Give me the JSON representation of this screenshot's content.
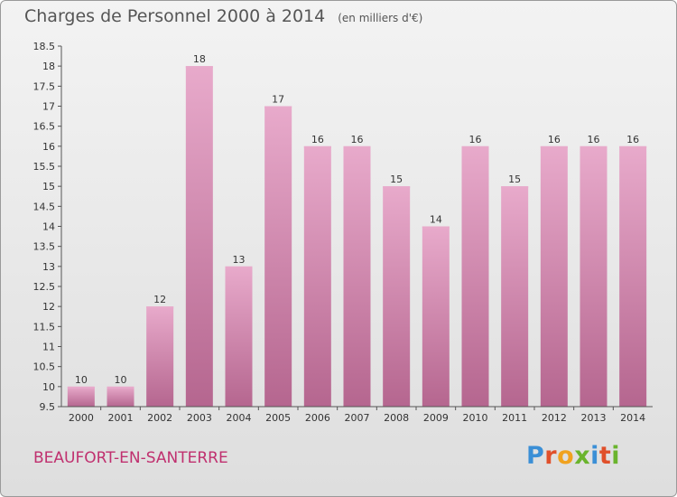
{
  "header": {
    "title": "Charges de Personnel 2000 à 2014",
    "subtitle": "(en milliers d'€)"
  },
  "footer": {
    "commune": "BEAUFORT-EN-SANTERRE",
    "logo": "Proxiti"
  },
  "colors": {
    "bar_top": "#e8aacb",
    "bar_bottom": "#b5668f",
    "commune_text": "#c0306f"
  },
  "chart_data": {
    "type": "bar",
    "title": "Charges de Personnel 2000 à 2014",
    "subtitle": "(en milliers d'€)",
    "xlabel": "",
    "ylabel": "",
    "categories": [
      "2000",
      "2001",
      "2002",
      "2003",
      "2004",
      "2005",
      "2006",
      "2007",
      "2008",
      "2009",
      "2010",
      "2011",
      "2012",
      "2013",
      "2014"
    ],
    "values": [
      10,
      10,
      12,
      18,
      13,
      17,
      16,
      16,
      15,
      14,
      16,
      15,
      16,
      16,
      16
    ],
    "data_labels": [
      "10",
      "10",
      "12",
      "18",
      "13",
      "17",
      "16",
      "16",
      "15",
      "14",
      "16",
      "15",
      "16",
      "16",
      "16"
    ],
    "ylim": [
      9.5,
      18.5
    ],
    "yticks": [
      "9.5",
      "10",
      "10.5",
      "11",
      "11.5",
      "12",
      "12.5",
      "13",
      "13.5",
      "14",
      "14.5",
      "15",
      "15.5",
      "16",
      "16.5",
      "17",
      "17.5",
      "18",
      "18.5"
    ],
    "grid": false,
    "legend": "none"
  }
}
